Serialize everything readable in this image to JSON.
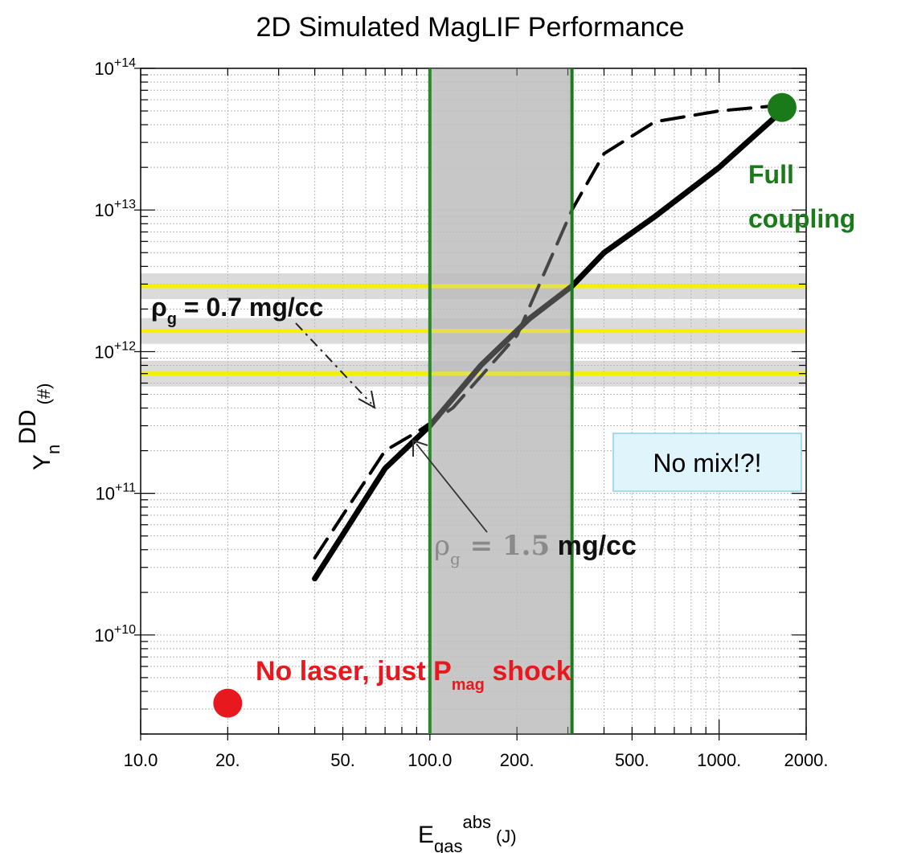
{
  "chart_data": {
    "type": "line",
    "title": "2D Simulated MagLIF Performance",
    "xlabel": {
      "main": "E",
      "sub": "gas",
      "sup": "abs",
      "unit": "(J)"
    },
    "ylabel": {
      "main": "Y",
      "sub": "n",
      "sup": "DD",
      "unit": "(#)"
    },
    "xscale": "log",
    "yscale": "log",
    "xlim": [
      10,
      2000
    ],
    "ylim": [
      2000000000,
      100000000000000
    ],
    "grid": true,
    "x_tick_values": [
      10,
      20,
      50,
      100,
      200,
      500,
      1000,
      2000
    ],
    "x_tick_labels": [
      "10.0",
      "20.",
      "50.",
      "100.0",
      "200.",
      "500.",
      "1000.",
      "2000."
    ],
    "y_ticks": [
      {
        "value": 10000000000,
        "base": "10",
        "exp": "+10"
      },
      {
        "value": 100000000000,
        "base": "10",
        "exp": "+11"
      },
      {
        "value": 1000000000000,
        "base": "10",
        "exp": "+12"
      },
      {
        "value": 10000000000000,
        "base": "10",
        "exp": "+13"
      },
      {
        "value": 100000000000000,
        "base": "10",
        "exp": "+14"
      }
    ],
    "series": [
      {
        "style": "solid",
        "color": "#000000",
        "x": [
          40,
          70,
          100,
          150,
          220,
          310,
          400,
          600,
          1000,
          1650
        ],
        "y": [
          25000000000,
          150000000000,
          300000000000,
          800000000000,
          1700000000000,
          2900000000000,
          5000000000000,
          9000000000000,
          20000000000000,
          50000000000000
        ]
      },
      {
        "style": "dashed",
        "color": "#000000",
        "x": [
          40,
          70,
          90,
          120,
          200,
          310,
          400,
          600,
          1000,
          1650
        ],
        "y": [
          35000000000,
          200000000000,
          270000000000,
          400000000000,
          1300000000000,
          10000000000000,
          25000000000000,
          42000000000000,
          50000000000000,
          55000000000000
        ]
      }
    ],
    "shaded_x_band": {
      "x": [
        100,
        310
      ],
      "color": "#b4b4b4"
    },
    "vertical_lines": [
      {
        "x": 100,
        "color": "#2a8a2a"
      },
      {
        "x": 310,
        "color": "#1f7a1f"
      }
    ],
    "horizontal_lines": [
      {
        "y": 2900000000000,
        "color": "#f5f000"
      },
      {
        "y": 1400000000000,
        "color": "#f5f000"
      },
      {
        "y": 700000000000,
        "color": "#f5f000"
      }
    ],
    "markers": [
      {
        "x": 20,
        "y": 3300000000,
        "color": "#e8191e",
        "label": "No laser, just P_mag shock"
      },
      {
        "x": 1650,
        "y": 53000000000000,
        "color": "#1a7a1a",
        "label": "Full coupling"
      }
    ],
    "annotations": {
      "rho07": {
        "sym": "ρ",
        "sub": "g",
        "text": " = 0.7 mg/cc"
      },
      "rho15": {
        "sym": "ρ",
        "sub": "g",
        "text1": " = 1.5",
        "text2": " mg/cc"
      },
      "full1": "Full",
      "full2": "coupling",
      "nolaser1": "No laser, just P",
      "nolaser_sub": "mag",
      "nolaser2": " shock",
      "nomix": "No mix!?!"
    },
    "colors": {
      "full_coupling": "#1a7a1a",
      "no_laser": "#e8191e",
      "nomix_bg": "#dff4fb",
      "nomix_border": "#8fd0e8"
    }
  }
}
